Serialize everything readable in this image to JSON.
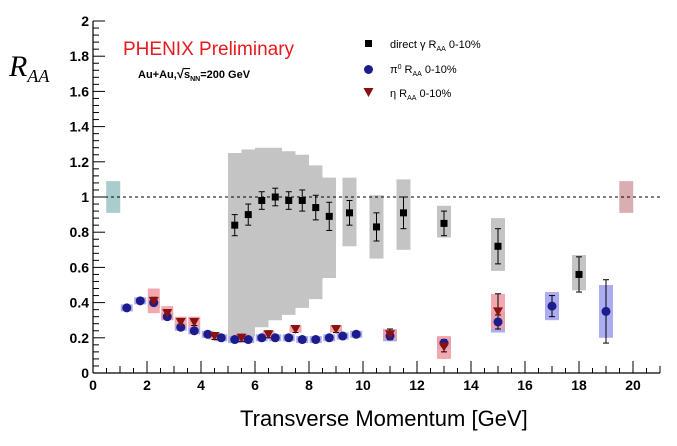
{
  "chart_data": {
    "type": "scatter",
    "title": "PHENIX Preliminary",
    "subtitle_prefix": "Au+Au,",
    "subtitle_sqrt": "s",
    "subtitle_sub": "NN",
    "subtitle_suffix": "=200 GeV",
    "xlabel": "Transverse Momentum [GeV]",
    "ylabel_main": "R",
    "ylabel_sub": "AA",
    "xlim": [
      0,
      21
    ],
    "ylim": [
      0,
      2
    ],
    "xticks": [
      0,
      2,
      4,
      6,
      8,
      10,
      12,
      14,
      16,
      18,
      20
    ],
    "yticks": [
      0,
      0.2,
      0.4,
      0.6,
      0.8,
      1,
      1.2,
      1.4,
      1.6,
      1.8,
      2
    ],
    "reference_line": 1,
    "norm_boxes": [
      {
        "x": 0.75,
        "low": 0.91,
        "high": 1.09,
        "color": "#a9cccc"
      },
      {
        "x": 19.75,
        "low": 0.91,
        "high": 1.09,
        "color": "#d8aeb2"
      }
    ],
    "series": [
      {
        "name": "direct γ R_AA 0-10%",
        "legend_main": "direct γ R",
        "legend_sub": "AA",
        "legend_tail": " 0-10%",
        "marker": "square",
        "color": "#000000",
        "sys_color": "#c4c4c4",
        "points": [
          {
            "x": 5.25,
            "y": 0.84,
            "err": 0.06,
            "sys": [
              0.17,
              1.25
            ]
          },
          {
            "x": 5.75,
            "y": 0.9,
            "err": 0.06,
            "sys": [
              0.21,
              1.27
            ]
          },
          {
            "x": 6.25,
            "y": 0.98,
            "err": 0.05,
            "sys": [
              0.26,
              1.28
            ]
          },
          {
            "x": 6.75,
            "y": 1.0,
            "err": 0.05,
            "sys": [
              0.3,
              1.28
            ]
          },
          {
            "x": 7.25,
            "y": 0.98,
            "err": 0.05,
            "sys": [
              0.33,
              1.26
            ]
          },
          {
            "x": 7.75,
            "y": 0.98,
            "err": 0.06,
            "sys": [
              0.37,
              1.24
            ]
          },
          {
            "x": 8.25,
            "y": 0.94,
            "err": 0.07,
            "sys": [
              0.42,
              1.18
            ]
          },
          {
            "x": 8.75,
            "y": 0.89,
            "err": 0.08,
            "sys": [
              0.54,
              1.11
            ]
          },
          {
            "x": 9.5,
            "y": 0.91,
            "err": 0.07,
            "sys": [
              0.72,
              1.11
            ]
          },
          {
            "x": 10.5,
            "y": 0.83,
            "err": 0.08,
            "sys": [
              0.65,
              1.01
            ]
          },
          {
            "x": 11.5,
            "y": 0.91,
            "err": 0.09,
            "sys": [
              0.7,
              1.1
            ]
          },
          {
            "x": 13.0,
            "y": 0.85,
            "err": 0.07,
            "sys": [
              0.77,
              0.95
            ]
          },
          {
            "x": 15.0,
            "y": 0.72,
            "err": 0.1,
            "sys": [
              0.58,
              0.88
            ]
          },
          {
            "x": 18.0,
            "y": 0.56,
            "err": 0.1,
            "sys": [
              0.47,
              0.67
            ]
          }
        ]
      },
      {
        "name": "π0 R_AA 0-10%",
        "legend_main": "π",
        "legend_sup": "0",
        "legend_sub": "AA",
        "legend_tail": " 0-10%",
        "legend_r": " R",
        "marker": "circle",
        "color": "#1c1c8c",
        "sys_color": "#a3a3ee",
        "points": [
          {
            "x": 1.25,
            "y": 0.37,
            "err": 0.01,
            "sys": [
              0.35,
              0.39
            ]
          },
          {
            "x": 1.75,
            "y": 0.41,
            "err": 0.01,
            "sys": [
              0.39,
              0.43
            ]
          },
          {
            "x": 2.25,
            "y": 0.4,
            "err": 0.01,
            "sys": [
              0.37,
              0.43
            ]
          },
          {
            "x": 2.75,
            "y": 0.32,
            "err": 0.01,
            "sys": [
              0.3,
              0.34
            ]
          },
          {
            "x": 3.25,
            "y": 0.26,
            "err": 0.01,
            "sys": [
              0.24,
              0.28
            ]
          },
          {
            "x": 3.75,
            "y": 0.24,
            "err": 0.01,
            "sys": [
              0.22,
              0.26
            ]
          },
          {
            "x": 4.25,
            "y": 0.22,
            "err": 0.01,
            "sys": [
              0.2,
              0.24
            ]
          },
          {
            "x": 4.75,
            "y": 0.2,
            "err": 0.01,
            "sys": [
              0.18,
              0.22
            ]
          },
          {
            "x": 5.25,
            "y": 0.19,
            "err": 0.01,
            "sys": [
              0.17,
              0.21
            ]
          },
          {
            "x": 5.75,
            "y": 0.19,
            "err": 0.01,
            "sys": [
              0.17,
              0.21
            ]
          },
          {
            "x": 6.25,
            "y": 0.2,
            "err": 0.01,
            "sys": [
              0.18,
              0.22
            ]
          },
          {
            "x": 6.75,
            "y": 0.2,
            "err": 0.01,
            "sys": [
              0.18,
              0.22
            ]
          },
          {
            "x": 7.25,
            "y": 0.2,
            "err": 0.01,
            "sys": [
              0.18,
              0.22
            ]
          },
          {
            "x": 7.75,
            "y": 0.19,
            "err": 0.01,
            "sys": [
              0.17,
              0.21
            ]
          },
          {
            "x": 8.25,
            "y": 0.19,
            "err": 0.01,
            "sys": [
              0.17,
              0.21
            ]
          },
          {
            "x": 8.75,
            "y": 0.2,
            "err": 0.01,
            "sys": [
              0.18,
              0.22
            ]
          },
          {
            "x": 9.25,
            "y": 0.21,
            "err": 0.01,
            "sys": [
              0.19,
              0.23
            ]
          },
          {
            "x": 9.75,
            "y": 0.22,
            "err": 0.01,
            "sys": [
              0.2,
              0.24
            ]
          },
          {
            "x": 11.0,
            "y": 0.21,
            "err": 0.02,
            "sys": [
              0.18,
              0.24
            ]
          },
          {
            "x": 13.0,
            "y": 0.17,
            "err": 0.02,
            "sys": [
              0.14,
              0.2
            ]
          },
          {
            "x": 15.0,
            "y": 0.29,
            "err": 0.04,
            "sys": [
              0.23,
              0.35
            ]
          },
          {
            "x": 17.0,
            "y": 0.38,
            "err": 0.06,
            "sys": [
              0.3,
              0.46
            ]
          },
          {
            "x": 19.0,
            "y": 0.35,
            "err": 0.18,
            "sys": [
              0.2,
              0.5
            ]
          }
        ]
      },
      {
        "name": "η R_AA 0-10%",
        "legend_main": "η R",
        "legend_sub": "AA",
        "legend_tail": " 0-10%",
        "marker": "triangle-down",
        "color": "#8b1010",
        "sys_color": "#f0a0a6",
        "points": [
          {
            "x": 2.25,
            "y": 0.41,
            "err": 0.02,
            "sys": [
              0.34,
              0.48
            ]
          },
          {
            "x": 2.75,
            "y": 0.34,
            "err": 0.02,
            "sys": [
              0.3,
              0.38
            ]
          },
          {
            "x": 3.25,
            "y": 0.29,
            "err": 0.02,
            "sys": [
              0.26,
              0.32
            ]
          },
          {
            "x": 3.75,
            "y": 0.29,
            "err": 0.02,
            "sys": [
              0.26,
              0.32
            ]
          },
          {
            "x": 4.5,
            "y": 0.21,
            "err": 0.02,
            "sys": [
              0.19,
              0.23
            ]
          },
          {
            "x": 5.5,
            "y": 0.2,
            "err": 0.02,
            "sys": [
              0.18,
              0.22
            ]
          },
          {
            "x": 6.5,
            "y": 0.22,
            "err": 0.02,
            "sys": [
              0.2,
              0.24
            ]
          },
          {
            "x": 7.5,
            "y": 0.25,
            "err": 0.02,
            "sys": [
              0.23,
              0.27
            ]
          },
          {
            "x": 9.0,
            "y": 0.25,
            "err": 0.02,
            "sys": [
              0.23,
              0.27
            ]
          },
          {
            "x": 11.0,
            "y": 0.22,
            "err": 0.03,
            "sys": [
              0.19,
              0.25
            ]
          },
          {
            "x": 13.0,
            "y": 0.15,
            "err": 0.03,
            "sys": [
              0.08,
              0.21
            ]
          },
          {
            "x": 15.0,
            "y": 0.35,
            "err": 0.1,
            "sys": [
              0.25,
              0.45
            ]
          }
        ]
      }
    ]
  }
}
